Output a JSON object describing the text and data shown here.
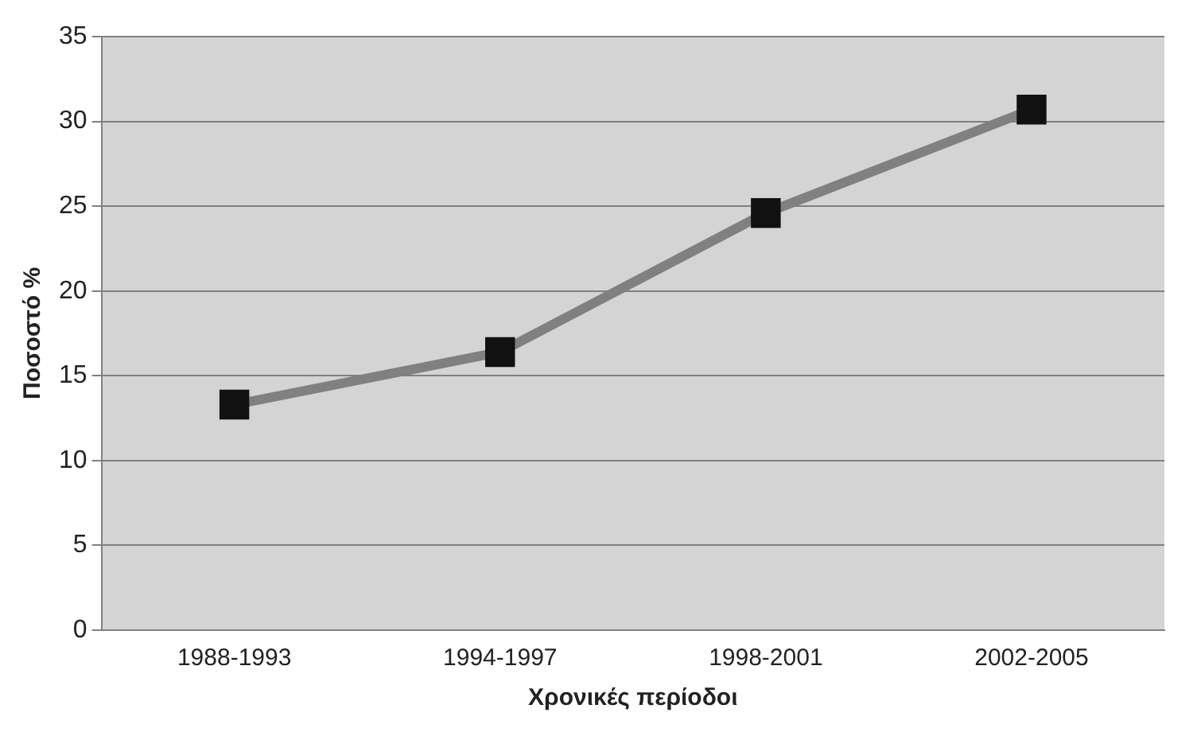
{
  "chart_data": {
    "type": "line",
    "xlabel": "Χρονικές περίοδοι",
    "ylabel": "Ποσοστό %",
    "categories": [
      "1988-1993",
      "1994-1997",
      "1998-2001",
      "2002-2005"
    ],
    "series": [
      {
        "color": "#808080",
        "values": [
          13.3,
          16.4,
          24.6,
          30.7
        ]
      }
    ],
    "ylim": [
      0,
      35
    ],
    "yticks": [
      0,
      5,
      10,
      15,
      20,
      25,
      30,
      35
    ],
    "grid": "y",
    "marker": "square",
    "line_style": "solid",
    "legend": false
  }
}
